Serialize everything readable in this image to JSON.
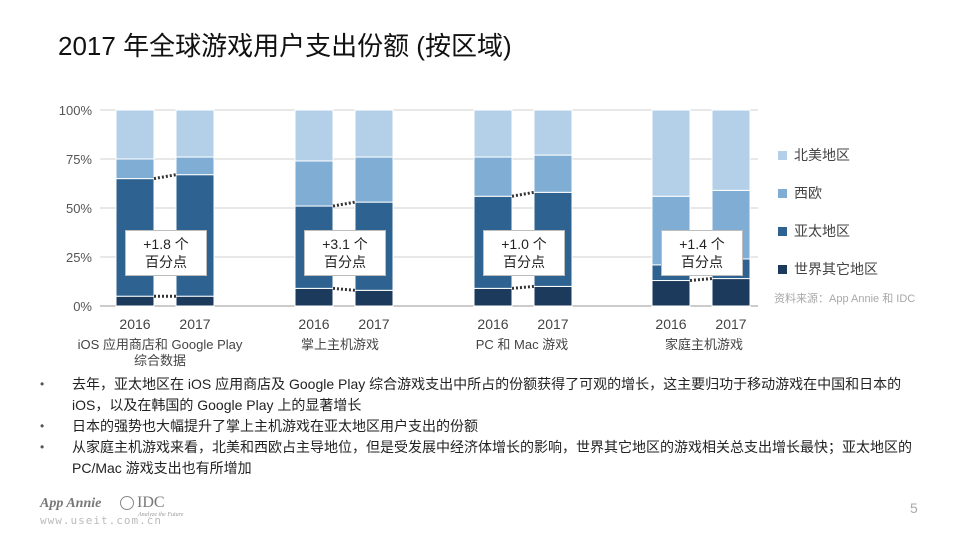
{
  "title": "2017 年全球游戏用户支出份额 (按区域)",
  "chart_data": {
    "type": "bar",
    "stacked": true,
    "percent": true,
    "groups": [
      {
        "label": "iOS 应用商店和 Google Play\n综合数据",
        "bars": [
          "2016",
          "2017"
        ]
      },
      {
        "label": "掌上主机游戏",
        "bars": [
          "2016",
          "2017"
        ]
      },
      {
        "label": "PC 和 Mac 游戏",
        "bars": [
          "2016",
          "2017"
        ]
      },
      {
        "label": "家庭主机游戏",
        "bars": [
          "2016",
          "2017"
        ]
      }
    ],
    "categories": [
      "2016",
      "2017",
      "2016",
      "2017",
      "2016",
      "2017",
      "2016",
      "2017"
    ],
    "series": [
      {
        "name": "世界其它地区",
        "color": "#1b3a5c",
        "values": [
          5,
          5,
          9,
          8,
          9,
          10,
          13,
          14
        ]
      },
      {
        "name": "亚太地区",
        "color": "#2d6291",
        "values": [
          60,
          62,
          42,
          45,
          47,
          48,
          8,
          10
        ]
      },
      {
        "name": "西欧",
        "color": "#7fadd4",
        "values": [
          10,
          9,
          23,
          23,
          20,
          19,
          35,
          35
        ]
      },
      {
        "name": "北美地区",
        "color": "#b3d0e8",
        "values": [
          25,
          24,
          26,
          24,
          24,
          23,
          44,
          41
        ]
      }
    ],
    "yticks": [
      "0%",
      "25%",
      "50%",
      "75%",
      "100%"
    ],
    "ylim": [
      0,
      100
    ],
    "annotations": [
      {
        "group": 0,
        "lines": [
          "+1.8 个",
          "百分点"
        ]
      },
      {
        "group": 1,
        "lines": [
          "+3.1 个",
          "百分点"
        ]
      },
      {
        "group": 2,
        "lines": [
          "+1.0 个",
          "百分点"
        ]
      },
      {
        "group": 3,
        "lines": [
          "+1.4 个",
          "百分点"
        ]
      }
    ],
    "legend": [
      "北美地区",
      "西欧",
      "亚太地区",
      "世界其它地区"
    ],
    "legend_position": "right"
  },
  "source": "资料来源：App Annie 和 IDC",
  "bullets": [
    "去年，亚太地区在 iOS 应用商店及 Google Play 综合游戏支出中所占的份额获得了可观的增长，这主要归功于移动游戏在中国和日本的 iOS，以及在韩国的 Google Play 上的显著增长",
    "日本的强势也大幅提升了掌上主机游戏在亚太地区用户支出的份额",
    "从家庭主机游戏来看，北美和西欧占主导地位，但是受发展中经济体增长的影响，世界其它地区的游戏相关总支出增长最快；亚太地区的 PC/Mac 游戏支出也有所增加"
  ],
  "page_number": "5",
  "logos": {
    "appannie": "App Annie",
    "idc": "IDC",
    "idc_sub": "Analyze the Future",
    "watermark": "www.useit.com.cn"
  }
}
